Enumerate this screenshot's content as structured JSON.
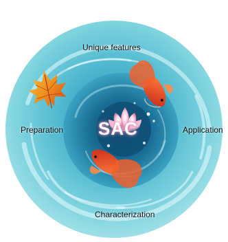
{
  "diagram": {
    "center_label": "SAC",
    "labels": {
      "top": "Unique features",
      "left": "Preparation",
      "right": "Application",
      "bottom": "Characterization"
    }
  },
  "colors": {
    "outer_water": "#5ec6d6",
    "inner_water": "#1f7fa3",
    "core": "#0f4f74",
    "fish": "#e8502a",
    "leaf": "#f0a020",
    "lotus": "#f4c2d8"
  }
}
